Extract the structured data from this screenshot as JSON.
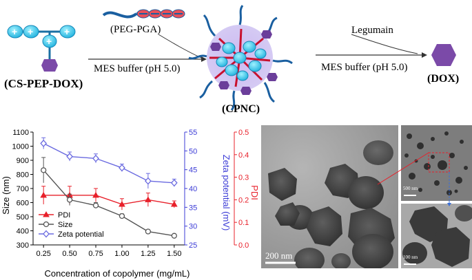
{
  "scheme": {
    "reactant_label": "(CS-PEP-DOX)",
    "polymer_label": "(PEG-PGA)",
    "step1_condition": "MES buffer (pH 5.0)",
    "complex_label": "(CPNC)",
    "enzyme_label": "Legumain",
    "step2_condition": "MES buffer (pH 5.0)",
    "product_label": "(DOX)",
    "plus_sign": "+"
  },
  "chart_data": {
    "type": "line",
    "x": [
      0.25,
      0.5,
      0.75,
      1.0,
      1.25,
      1.5
    ],
    "xticks": [
      "0.25",
      "0.50",
      "0.75",
      "1.00",
      "1.25",
      "1.50"
    ],
    "xlabel": "Concentration of copolymer (mg/mL)",
    "y_left": {
      "label": "Size (nm)",
      "lim": [
        300,
        1100
      ],
      "ticks": [
        "300",
        "400",
        "500",
        "600",
        "700",
        "800",
        "900",
        "1000",
        "1100"
      ]
    },
    "y_right1": {
      "label": "Zeta potential (mV)",
      "lim": [
        25,
        55
      ],
      "ticks": [
        "25",
        "30",
        "35",
        "40",
        "45",
        "50",
        "55"
      ],
      "color": "#3b3bd6"
    },
    "y_right2": {
      "label": "PDI",
      "lim": [
        0.0,
        0.5
      ],
      "ticks": [
        "0.0",
        "0.1",
        "0.2",
        "0.3",
        "0.4",
        "0.5"
      ],
      "color": "#e8202a"
    },
    "series": [
      {
        "name": "PDI",
        "axis": "pdi",
        "color": "#e8202a",
        "marker": "triangle",
        "values": [
          0.22,
          0.22,
          0.22,
          0.18,
          0.2,
          0.18
        ],
        "errors": [
          0.04,
          0.04,
          0.03,
          0.025,
          0.03,
          0.015
        ]
      },
      {
        "name": "Size",
        "axis": "size",
        "color": "#555555",
        "marker": "circle",
        "values": [
          830,
          620,
          580,
          505,
          395,
          365
        ],
        "errors": [
          90,
          40,
          20,
          15,
          8,
          5
        ]
      },
      {
        "name": "Zeta potential",
        "axis": "zeta",
        "color": "#6a6ae0",
        "marker": "diamond",
        "values": [
          52,
          48.5,
          48,
          45.5,
          42,
          41.5
        ],
        "errors": [
          1.5,
          1.2,
          1.2,
          1.0,
          2.0,
          1.0
        ]
      }
    ],
    "legend_position": "bottom-left"
  },
  "tem": {
    "scale_main": "200 nm",
    "scale_inset": "100 nm",
    "scale_top_small": "500 nm"
  }
}
